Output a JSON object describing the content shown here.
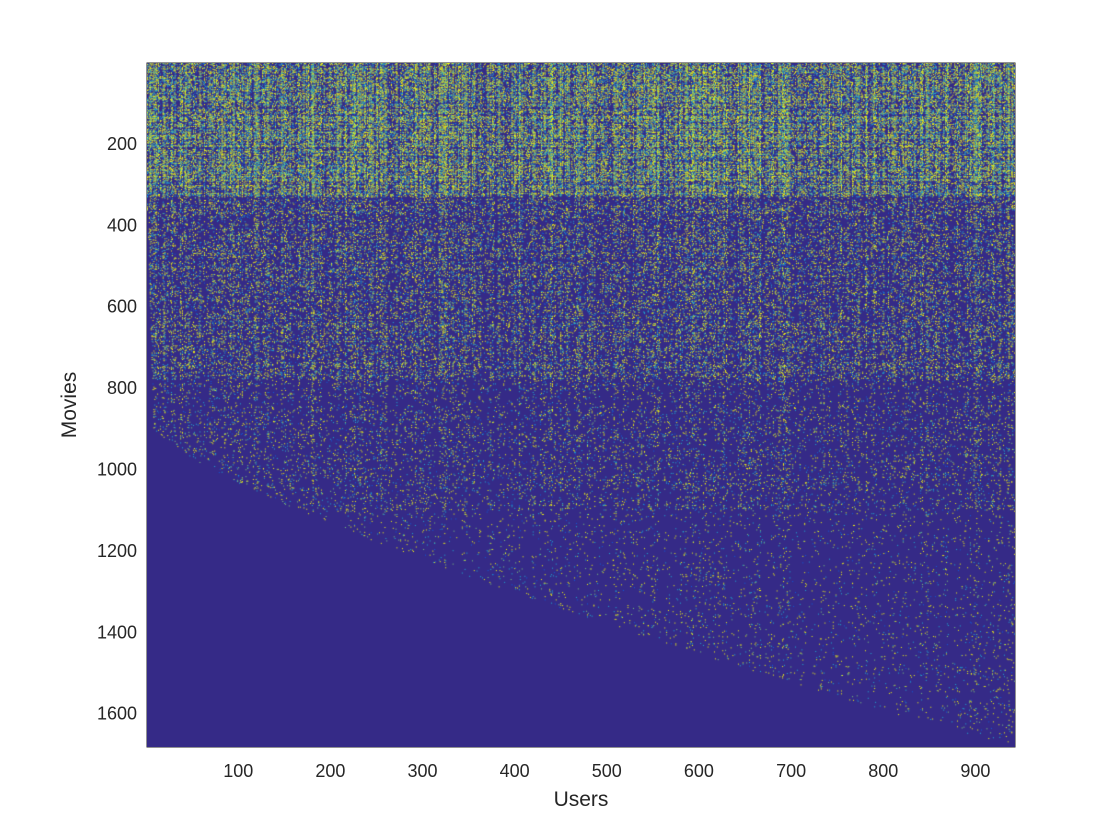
{
  "chart_data": {
    "type": "heatmap",
    "title": "",
    "xlabel": "Users",
    "ylabel": "Movies",
    "xlim": [
      1,
      943
    ],
    "ylim": [
      1,
      1682
    ],
    "y_direction": "reverse",
    "x_ticks": [
      100,
      200,
      300,
      400,
      500,
      600,
      700,
      800,
      900
    ],
    "y_ticks": [
      200,
      400,
      600,
      800,
      1000,
      1200,
      1400,
      1600
    ],
    "colormap": "parula",
    "colors": {
      "background": "#352A87",
      "low": "#0F5CDD",
      "mid": "#1FAED5",
      "high_mid": "#7FCB7A",
      "high": "#F9FB0E"
    },
    "grid": false,
    "legend": "none",
    "value_scale": [
      0,
      5
    ],
    "description_of_pattern": [
      {
        "movie_to": 1682,
        "user_count_rated_boundary_hint": "triangular empty region at lower-left; ratings appear to the right of an increasing user index"
      },
      {
        "dense_band_movies": [
          1,
          330
        ]
      },
      {
        "medium_band_movies": [
          330,
          780
        ]
      },
      {
        "sparse_band_movies": [
          780,
          1682
        ]
      }
    ]
  }
}
